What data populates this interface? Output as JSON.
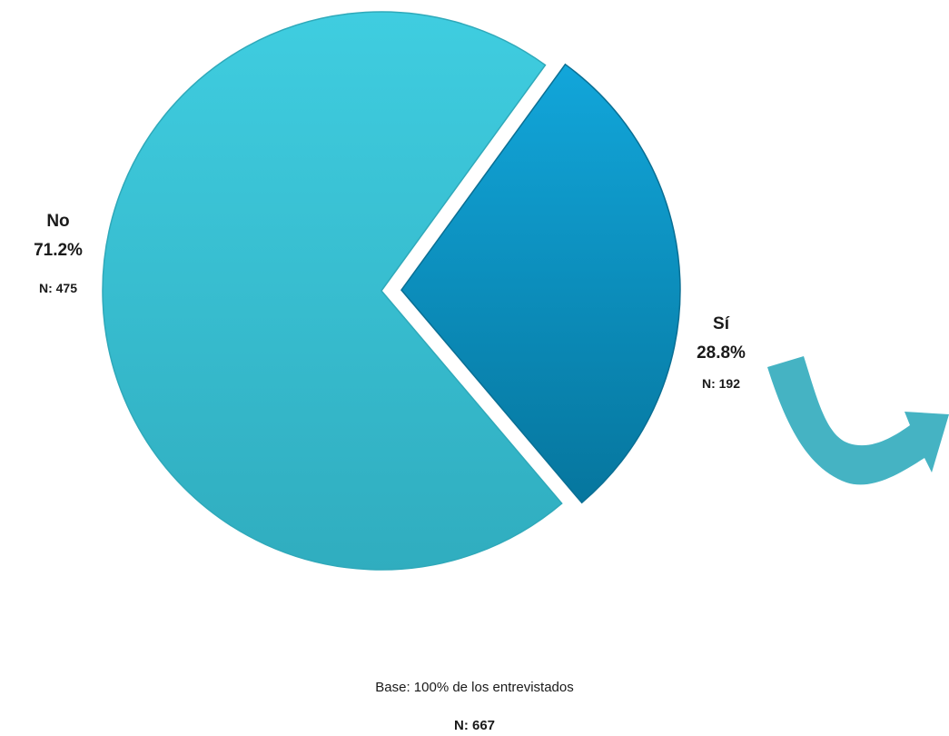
{
  "chart_data": {
    "type": "pie",
    "slices": [
      {
        "label": "No",
        "value": 71.2,
        "value_label": "71.2%",
        "n_label": "N: 475",
        "color": "#3bc8dc",
        "exploded": false
      },
      {
        "label": "Sí",
        "value": 28.8,
        "value_label": "28.8%",
        "n_label": "N: 192",
        "color": "#0a96c8",
        "exploded": true
      }
    ],
    "base_note": "Base: 100% de los entrevistados",
    "total_label": "N: 667",
    "arrow_color": "#45b3c3"
  }
}
